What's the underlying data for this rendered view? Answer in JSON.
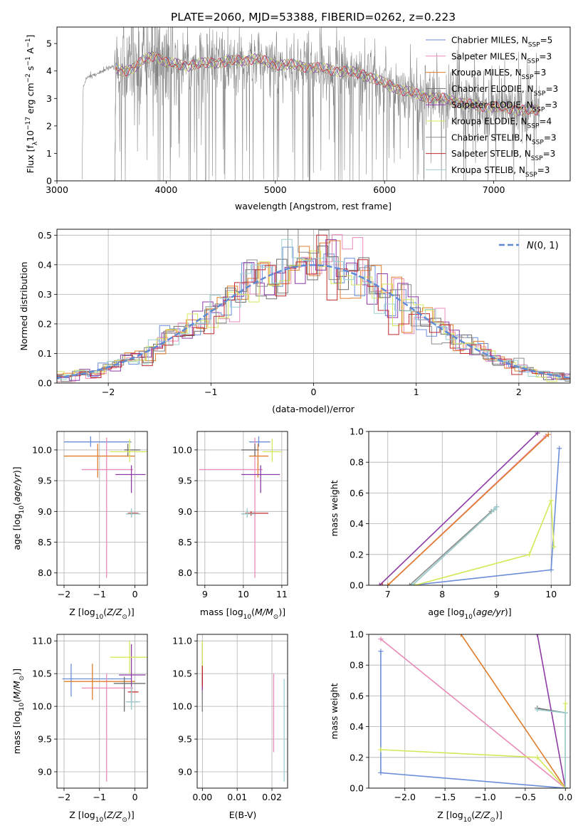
{
  "title": "PLATE=2060, MJD=53388, FIBERID=0262, z=0.223",
  "colors": {
    "Chabrier MILES": "#6a8ed8",
    "Salpeter MILES": "#e98bb9",
    "Kroupa MILES": "#e07d2a",
    "Chabrier ELODIE": "#6f6f6f",
    "Salpeter ELODIE": "#8e3aa6",
    "Kroupa ELODIE": "#d4e85a",
    "Chabrier STELIB": "#8c8c8c",
    "Salpeter STELIB": "#c0282b",
    "Kroupa STELIB": "#9ecfcf",
    "data": "#808080",
    "gaussian": "#5b8ad6"
  },
  "chart_data": [
    {
      "id": "spectrum",
      "type": "line",
      "xlabel": "wavelength [Angstrom, rest frame]",
      "ylabel": "Flux [fλ 10⁻¹⁷ erg cm⁻² s⁻¹ A⁻¹]",
      "xlim": [
        3000,
        7700
      ],
      "ylim": [
        0,
        5.6
      ],
      "xticks": [
        3000,
        4000,
        5000,
        6000,
        7000
      ],
      "yticks": [
        0,
        1,
        2,
        3,
        4,
        5
      ],
      "grid": false,
      "legend_position": "top-right",
      "data_range": [
        3230,
        7420
      ],
      "model_range": [
        3530,
        7420
      ],
      "continuum": [
        [
          3230,
          0
        ],
        [
          3240,
          3.4
        ],
        [
          3270,
          3.75
        ],
        [
          3320,
          3.85
        ],
        [
          3380,
          3.9
        ],
        [
          3450,
          4.1
        ],
        [
          3500,
          4.15
        ],
        [
          3600,
          4.0
        ],
        [
          3700,
          4.1
        ],
        [
          3800,
          4.4
        ],
        [
          3900,
          4.6
        ],
        [
          4000,
          4.3
        ],
        [
          4200,
          4.2
        ],
        [
          4400,
          4.3
        ],
        [
          4600,
          4.35
        ],
        [
          4800,
          4.45
        ],
        [
          5000,
          4.25
        ],
        [
          5200,
          4.2
        ],
        [
          5400,
          4.1
        ],
        [
          5600,
          4.0
        ],
        [
          5800,
          3.9
        ],
        [
          6000,
          3.55
        ],
        [
          6200,
          3.25
        ],
        [
          6400,
          3.05
        ],
        [
          6600,
          2.95
        ],
        [
          6800,
          2.75
        ],
        [
          7000,
          2.7
        ],
        [
          7200,
          2.6
        ],
        [
          7420,
          2.55
        ]
      ],
      "series": [
        {
          "name": "Chabrier MILES, N_SSP=5"
        },
        {
          "name": "Salpeter MILES, N_SSP=3"
        },
        {
          "name": "Kroupa MILES, N_SSP=3"
        },
        {
          "name": "Chabrier ELODIE, N_SSP=3"
        },
        {
          "name": "Salpeter ELODIE, N_SSP=3"
        },
        {
          "name": "Kroupa ELODIE, N_SSP=4"
        },
        {
          "name": "Chabrier STELIB, N_SSP=3"
        },
        {
          "name": "Salpeter STELIB, N_SSP=3"
        },
        {
          "name": "Kroupa STELIB, N_SSP=3"
        }
      ]
    },
    {
      "id": "residuals",
      "type": "line",
      "xlabel": "(data-model)/error",
      "ylabel": "Normed distribution",
      "xlim": [
        -2.5,
        2.5
      ],
      "ylim": [
        0,
        0.52
      ],
      "xticks": [
        -2,
        -1,
        0,
        1,
        2
      ],
      "yticks": [
        0.0,
        0.1,
        0.2,
        0.3,
        0.4,
        0.5
      ],
      "grid": true,
      "legend_position": "top-right",
      "reference_curve": "N(0,1)",
      "bin_width": 0.1
    },
    {
      "id": "age-vs-Z",
      "type": "scatter",
      "xlabel": "Z [log10(Z/Z⊙)]",
      "ylabel": "age [log10(age/yr)]",
      "xlim": [
        -2.2,
        0.35
      ],
      "ylim": [
        7.8,
        10.3
      ],
      "xticks": [
        -2,
        -1,
        0
      ],
      "yticks": [
        8.0,
        8.5,
        9.0,
        9.5,
        10.0
      ],
      "grid": true,
      "points": [
        {
          "series": "Chabrier MILES",
          "x": -1.25,
          "x_lo": -2.0,
          "x_hi": -0.1,
          "y": 10.13,
          "y_lo": 10.05,
          "y_hi": 10.22
        },
        {
          "series": "Salpeter MILES",
          "x": -0.8,
          "x_lo": -1.5,
          "x_hi": -0.05,
          "y": 9.68,
          "y_lo": 7.92,
          "y_hi": 10.2
        },
        {
          "series": "Kroupa MILES",
          "x": -1.05,
          "x_lo": -2.0,
          "x_hi": -0.0,
          "y": 9.9,
          "y_lo": 9.55,
          "y_hi": 10.1
        },
        {
          "series": "Chabrier ELODIE",
          "x": -0.2,
          "x_lo": -0.3,
          "x_hi": 0.15,
          "y": 10.0,
          "y_lo": 9.9,
          "y_hi": 10.1
        },
        {
          "series": "Salpeter ELODIE",
          "x": -0.1,
          "x_lo": -0.55,
          "x_hi": 0.3,
          "y": 9.6,
          "y_lo": 9.3,
          "y_hi": 9.75
        },
        {
          "series": "Kroupa ELODIE",
          "x": -0.15,
          "x_lo": -0.7,
          "x_hi": 0.35,
          "y": 9.97,
          "y_lo": 9.8,
          "y_hi": 10.18
        },
        {
          "series": "Chabrier STELIB",
          "x": -0.1,
          "x_lo": -0.25,
          "x_hi": 0.15,
          "y": 8.96,
          "y_lo": 8.9,
          "y_hi": 9.02
        },
        {
          "series": "Salpeter STELIB",
          "x": -0.1,
          "x_lo": -0.2,
          "x_hi": 0.1,
          "y": 8.97,
          "y_lo": 8.93,
          "y_hi": 9.0
        },
        {
          "series": "Kroupa STELIB",
          "x": -0.1,
          "x_lo": -0.25,
          "x_hi": 0.15,
          "y": 8.96,
          "y_lo": 8.9,
          "y_hi": 9.05
        }
      ]
    },
    {
      "id": "age-vs-mass",
      "type": "scatter",
      "xlabel": "mass [log10(M/M⊙)]",
      "ylabel": "",
      "xlim": [
        8.8,
        11.15
      ],
      "ylim": [
        7.8,
        10.3
      ],
      "xticks": [
        9,
        10,
        11
      ],
      "yticks": [
        8.0,
        8.5,
        9.0,
        9.5,
        10.0
      ],
      "grid": true,
      "points": [
        {
          "series": "Chabrier MILES",
          "x": 10.4,
          "x_lo": 10.15,
          "x_hi": 10.7,
          "y": 10.13,
          "y_lo": 10.05,
          "y_hi": 10.22
        },
        {
          "series": "Salpeter MILES",
          "x": 10.3,
          "x_lo": 8.85,
          "x_hi": 10.5,
          "y": 9.68,
          "y_lo": 7.92,
          "y_hi": 10.2
        },
        {
          "series": "Kroupa MILES",
          "x": 10.38,
          "x_lo": 10.15,
          "x_hi": 10.65,
          "y": 9.9,
          "y_lo": 9.55,
          "y_hi": 10.1
        },
        {
          "series": "Chabrier ELODIE",
          "x": 10.3,
          "x_lo": 9.95,
          "x_hi": 10.4,
          "y": 10.0,
          "y_lo": 9.9,
          "y_hi": 10.1
        },
        {
          "series": "Salpeter ELODIE",
          "x": 10.45,
          "x_lo": 9.95,
          "x_hi": 10.95,
          "y": 9.6,
          "y_lo": 9.3,
          "y_hi": 9.75
        },
        {
          "series": "Kroupa ELODIE",
          "x": 10.75,
          "x_lo": 10.5,
          "x_hi": 11.0,
          "y": 9.97,
          "y_lo": 9.8,
          "y_hi": 10.18
        },
        {
          "series": "Chabrier STELIB",
          "x": 10.1,
          "x_lo": 9.95,
          "x_hi": 10.3,
          "y": 8.96,
          "y_lo": 8.9,
          "y_hi": 9.02
        },
        {
          "series": "Salpeter STELIB",
          "x": 10.2,
          "x_lo": 10.05,
          "x_hi": 10.65,
          "y": 8.97,
          "y_lo": 8.93,
          "y_hi": 9.0
        },
        {
          "series": "Kroupa STELIB",
          "x": 10.1,
          "x_lo": 9.95,
          "x_hi": 10.3,
          "y": 8.96,
          "y_lo": 8.9,
          "y_hi": 9.05
        }
      ]
    },
    {
      "id": "mass-vs-Z",
      "type": "scatter",
      "xlabel": "Z [log10(Z/Z⊙)]",
      "ylabel": "mass [log10(M/M⊙)]",
      "xlim": [
        -2.2,
        0.35
      ],
      "ylim": [
        8.75,
        11.1
      ],
      "xticks": [
        -2,
        -1,
        0
      ],
      "yticks": [
        9.0,
        9.5,
        10.0,
        10.5,
        11.0
      ],
      "grid": true,
      "points": [
        {
          "series": "Chabrier MILES",
          "x": -1.8,
          "x_lo": -2.05,
          "x_hi": -0.1,
          "y": 10.42,
          "y_lo": 10.15,
          "y_hi": 10.65
        },
        {
          "series": "Salpeter MILES",
          "x": -0.8,
          "x_lo": -1.5,
          "x_hi": -0.05,
          "y": 10.28,
          "y_lo": 8.85,
          "y_hi": 10.5
        },
        {
          "series": "Kroupa MILES",
          "x": -1.2,
          "x_lo": -2.0,
          "x_hi": 0.0,
          "y": 10.38,
          "y_lo": 10.1,
          "y_hi": 10.65
        },
        {
          "series": "Chabrier ELODIE",
          "x": -0.3,
          "x_lo": -0.6,
          "x_hi": 0.3,
          "y": 10.35,
          "y_lo": 9.92,
          "y_hi": 10.45
        },
        {
          "series": "Salpeter ELODIE",
          "x": -0.1,
          "x_lo": -0.45,
          "x_hi": 0.3,
          "y": 10.48,
          "y_lo": 10.15,
          "y_hi": 10.95
        },
        {
          "series": "Kroupa ELODIE",
          "x": -0.15,
          "x_lo": -0.7,
          "x_hi": 0.35,
          "y": 10.75,
          "y_lo": 10.5,
          "y_hi": 11.0
        },
        {
          "series": "Chabrier STELIB",
          "x": -0.1,
          "x_lo": -0.25,
          "x_hi": 0.1,
          "y": 10.07,
          "y_lo": 9.95,
          "y_hi": 10.25
        },
        {
          "series": "Salpeter STELIB",
          "x": -0.1,
          "x_lo": -0.2,
          "x_hi": 0.1,
          "y": 10.22,
          "y_lo": 10.05,
          "y_hi": 10.3
        },
        {
          "series": "Kroupa STELIB",
          "x": -0.1,
          "x_lo": -0.25,
          "x_hi": 0.15,
          "y": 10.07,
          "y_lo": 9.95,
          "y_hi": 10.3
        }
      ]
    },
    {
      "id": "mass-vs-EBV",
      "type": "scatter",
      "xlabel": "E(B-V)",
      "ylabel": "",
      "xlim": [
        -0.0015,
        0.0245
      ],
      "ylim": [
        8.75,
        11.1
      ],
      "xticks": [
        0.0,
        0.01,
        0.02
      ],
      "xticklabels": [
        "0.00",
        "0.01",
        "0.02"
      ],
      "yticks": [
        9.0,
        9.5,
        10.0,
        10.5,
        11.0
      ],
      "grid": true,
      "points": [
        {
          "series": "Chabrier MILES",
          "x": 0.0,
          "y": 10.42,
          "y_lo": 10.15,
          "y_hi": 10.65
        },
        {
          "series": "Salpeter MILES",
          "x": 0.0205,
          "y": 10.28,
          "y_lo": 9.3,
          "y_hi": 10.5
        },
        {
          "series": "Kroupa MILES",
          "x": 0.0,
          "y": 10.38,
          "y_lo": 10.1,
          "y_hi": 10.65
        },
        {
          "series": "Chabrier ELODIE",
          "x": 0.0,
          "y": 10.35,
          "y_lo": 9.92,
          "y_hi": 10.45
        },
        {
          "series": "Salpeter ELODIE",
          "x": 0.0,
          "y": 10.48,
          "y_lo": 10.15,
          "y_hi": 10.95
        },
        {
          "series": "Kroupa ELODIE",
          "x": 0.0,
          "y": 10.75,
          "y_lo": 10.5,
          "y_hi": 11.0
        },
        {
          "series": "Chabrier STELIB",
          "x": 0.0,
          "y": 10.07,
          "y_lo": 9.95,
          "y_hi": 10.25
        },
        {
          "series": "Salpeter STELIB",
          "x": 0.0,
          "y": 10.52,
          "y_lo": 10.3,
          "y_hi": 10.62
        },
        {
          "series": "Kroupa STELIB",
          "x": 0.0235,
          "y": 9.65,
          "y_lo": 8.85,
          "y_hi": 10.42
        }
      ]
    },
    {
      "id": "weight-vs-age",
      "type": "line",
      "xlabel": "age [log10(age/yr)]",
      "ylabel": "mass weight",
      "xlim": [
        6.65,
        10.35
      ],
      "ylim": [
        0,
        1.0
      ],
      "xticks": [
        7,
        8,
        9,
        10
      ],
      "yticks": [
        0.0,
        0.2,
        0.4,
        0.6,
        0.8,
        1.0
      ],
      "grid": true,
      "series": [
        {
          "key": "Chabrier MILES",
          "points": [
            [
              7.45,
              0.0
            ],
            [
              10.0,
              0.1
            ],
            [
              10.15,
              0.89
            ]
          ]
        },
        {
          "key": "Salpeter MILES",
          "points": [
            [
              7.0,
              0.0
            ],
            [
              9.9,
              0.97
            ]
          ]
        },
        {
          "key": "Kroupa MILES",
          "points": [
            [
              7.0,
              0.0
            ],
            [
              9.95,
              0.98
            ]
          ]
        },
        {
          "key": "Chabrier ELODIE",
          "points": [
            [
              7.45,
              0.0
            ],
            [
              8.95,
              0.49
            ],
            [
              9.0,
              0.51
            ]
          ]
        },
        {
          "key": "Salpeter ELODIE",
          "points": [
            [
              6.85,
              0.0
            ],
            [
              9.75,
              0.99
            ]
          ]
        },
        {
          "key": "Kroupa ELODIE",
          "points": [
            [
              7.5,
              0.0
            ],
            [
              9.6,
              0.2
            ],
            [
              10.0,
              0.55
            ],
            [
              10.05,
              0.25
            ]
          ]
        },
        {
          "key": "Chabrier STELIB",
          "points": [
            [
              7.4,
              0.0
            ],
            [
              8.9,
              0.48
            ]
          ]
        },
        {
          "key": "Salpeter STELIB",
          "points": [
            [
              6.9,
              0.0
            ]
          ]
        },
        {
          "key": "Kroupa STELIB",
          "points": [
            [
              7.45,
              0.0
            ],
            [
              8.95,
              0.49
            ],
            [
              9.0,
              0.51
            ]
          ]
        }
      ]
    },
    {
      "id": "weight-vs-Z",
      "type": "line",
      "xlabel": "Z [log10(Z/Z⊙)]",
      "ylabel": "mass weight",
      "xlim": [
        -2.45,
        0.06
      ],
      "ylim": [
        0,
        1.0
      ],
      "xticks": [
        -2.0,
        -1.5,
        -1.0,
        -0.5,
        0.0
      ],
      "yticks": [
        0.0,
        0.2,
        0.4,
        0.6,
        0.8,
        1.0
      ],
      "grid": true,
      "series": [
        {
          "key": "Chabrier MILES",
          "points": [
            [
              -2.3,
              0.89
            ],
            [
              -2.3,
              0.1
            ],
            [
              0.0,
              0.0
            ]
          ]
        },
        {
          "key": "Salpeter MILES",
          "points": [
            [
              -2.3,
              0.97
            ],
            [
              0.0,
              0.0
            ]
          ]
        },
        {
          "key": "Kroupa MILES",
          "points": [
            [
              -1.3,
              1.0
            ],
            [
              0.0,
              0.0
            ]
          ]
        },
        {
          "key": "Chabrier ELODIE",
          "points": [
            [
              -0.35,
              0.52
            ],
            [
              0.0,
              0.49
            ],
            [
              0.0,
              0.0
            ]
          ]
        },
        {
          "key": "Salpeter ELODIE",
          "points": [
            [
              -0.35,
              1.0
            ],
            [
              0.0,
              0.0
            ]
          ]
        },
        {
          "key": "Kroupa ELODIE",
          "points": [
            [
              -2.3,
              0.25
            ],
            [
              -0.35,
              0.2
            ],
            [
              0.0,
              0.0
            ],
            [
              0.0,
              0.55
            ]
          ]
        },
        {
          "key": "Chabrier STELIB",
          "points": [
            [
              0.0,
              0.0
            ]
          ]
        },
        {
          "key": "Salpeter STELIB",
          "points": [
            [
              0.0,
              0.0
            ]
          ]
        },
        {
          "key": "Kroupa STELIB",
          "points": [
            [
              -0.35,
              0.51
            ],
            [
              0.0,
              0.49
            ],
            [
              0.0,
              0.0
            ]
          ]
        }
      ]
    }
  ]
}
